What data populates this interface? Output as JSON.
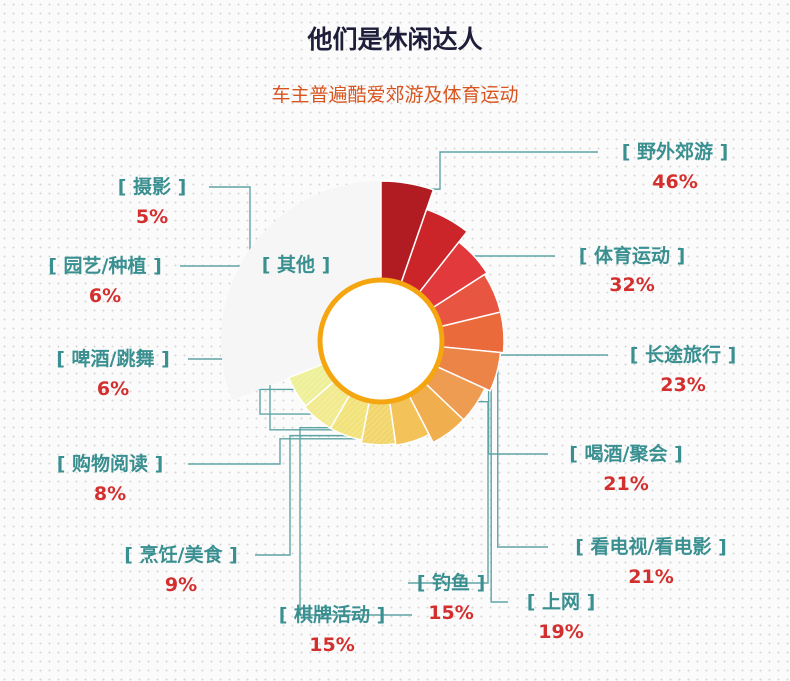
{
  "header": {
    "title": "他们是休闲达人",
    "subtitle": "车主普遍酷爱郊游及体育运动"
  },
  "chart_data": {
    "type": "pie",
    "title": "他们是休闲达人",
    "subtitle": "车主普遍酷爱郊游及体育运动",
    "other_label": "[ 其他 ]",
    "categories": [
      "野外郊游",
      "体育运动",
      "长途旅行",
      "喝酒/聚会",
      "看电视/看电影",
      "上网",
      "钓鱼",
      "棋牌活动",
      "烹饪/美食",
      "购物阅读",
      "啤酒/跳舞",
      "园艺/种植",
      "摄影"
    ],
    "values": [
      46,
      32,
      23,
      21,
      21,
      19,
      15,
      15,
      9,
      8,
      6,
      6,
      5
    ],
    "labels": [
      "[ 野外郊游 ]",
      "[ 体育运动 ]",
      "[ 长途旅行 ]",
      "[ 喝酒/聚会 ]",
      "[ 看电视/看电影 ]",
      "[ 上网 ]",
      "[ 钓鱼 ]",
      "[ 棋牌活动 ]",
      "[ 烹饪/美食 ]",
      "[ 购物阅读 ]",
      "[ 啤酒/跳舞 ]",
      "[ 园艺/种植 ]",
      "[ 摄影 ]"
    ],
    "value_labels": [
      "46%",
      "32%",
      "23%",
      "21%",
      "21%",
      "19%",
      "15%",
      "15%",
      "9%",
      "8%",
      "6%",
      "6%",
      "5%"
    ],
    "colors": [
      "#b01c22",
      "#cc2529",
      "#e2393c",
      "#e85540",
      "#ea6a3c",
      "#eb8446",
      "#ee9c52",
      "#f0ae4e",
      "#f3c35a",
      "#f2d56a",
      "#f2e27a",
      "#f2ea8e",
      "#eef098"
    ],
    "center_ring_color": "#f5a50f",
    "leader_line_color": "#5fa4a5"
  }
}
